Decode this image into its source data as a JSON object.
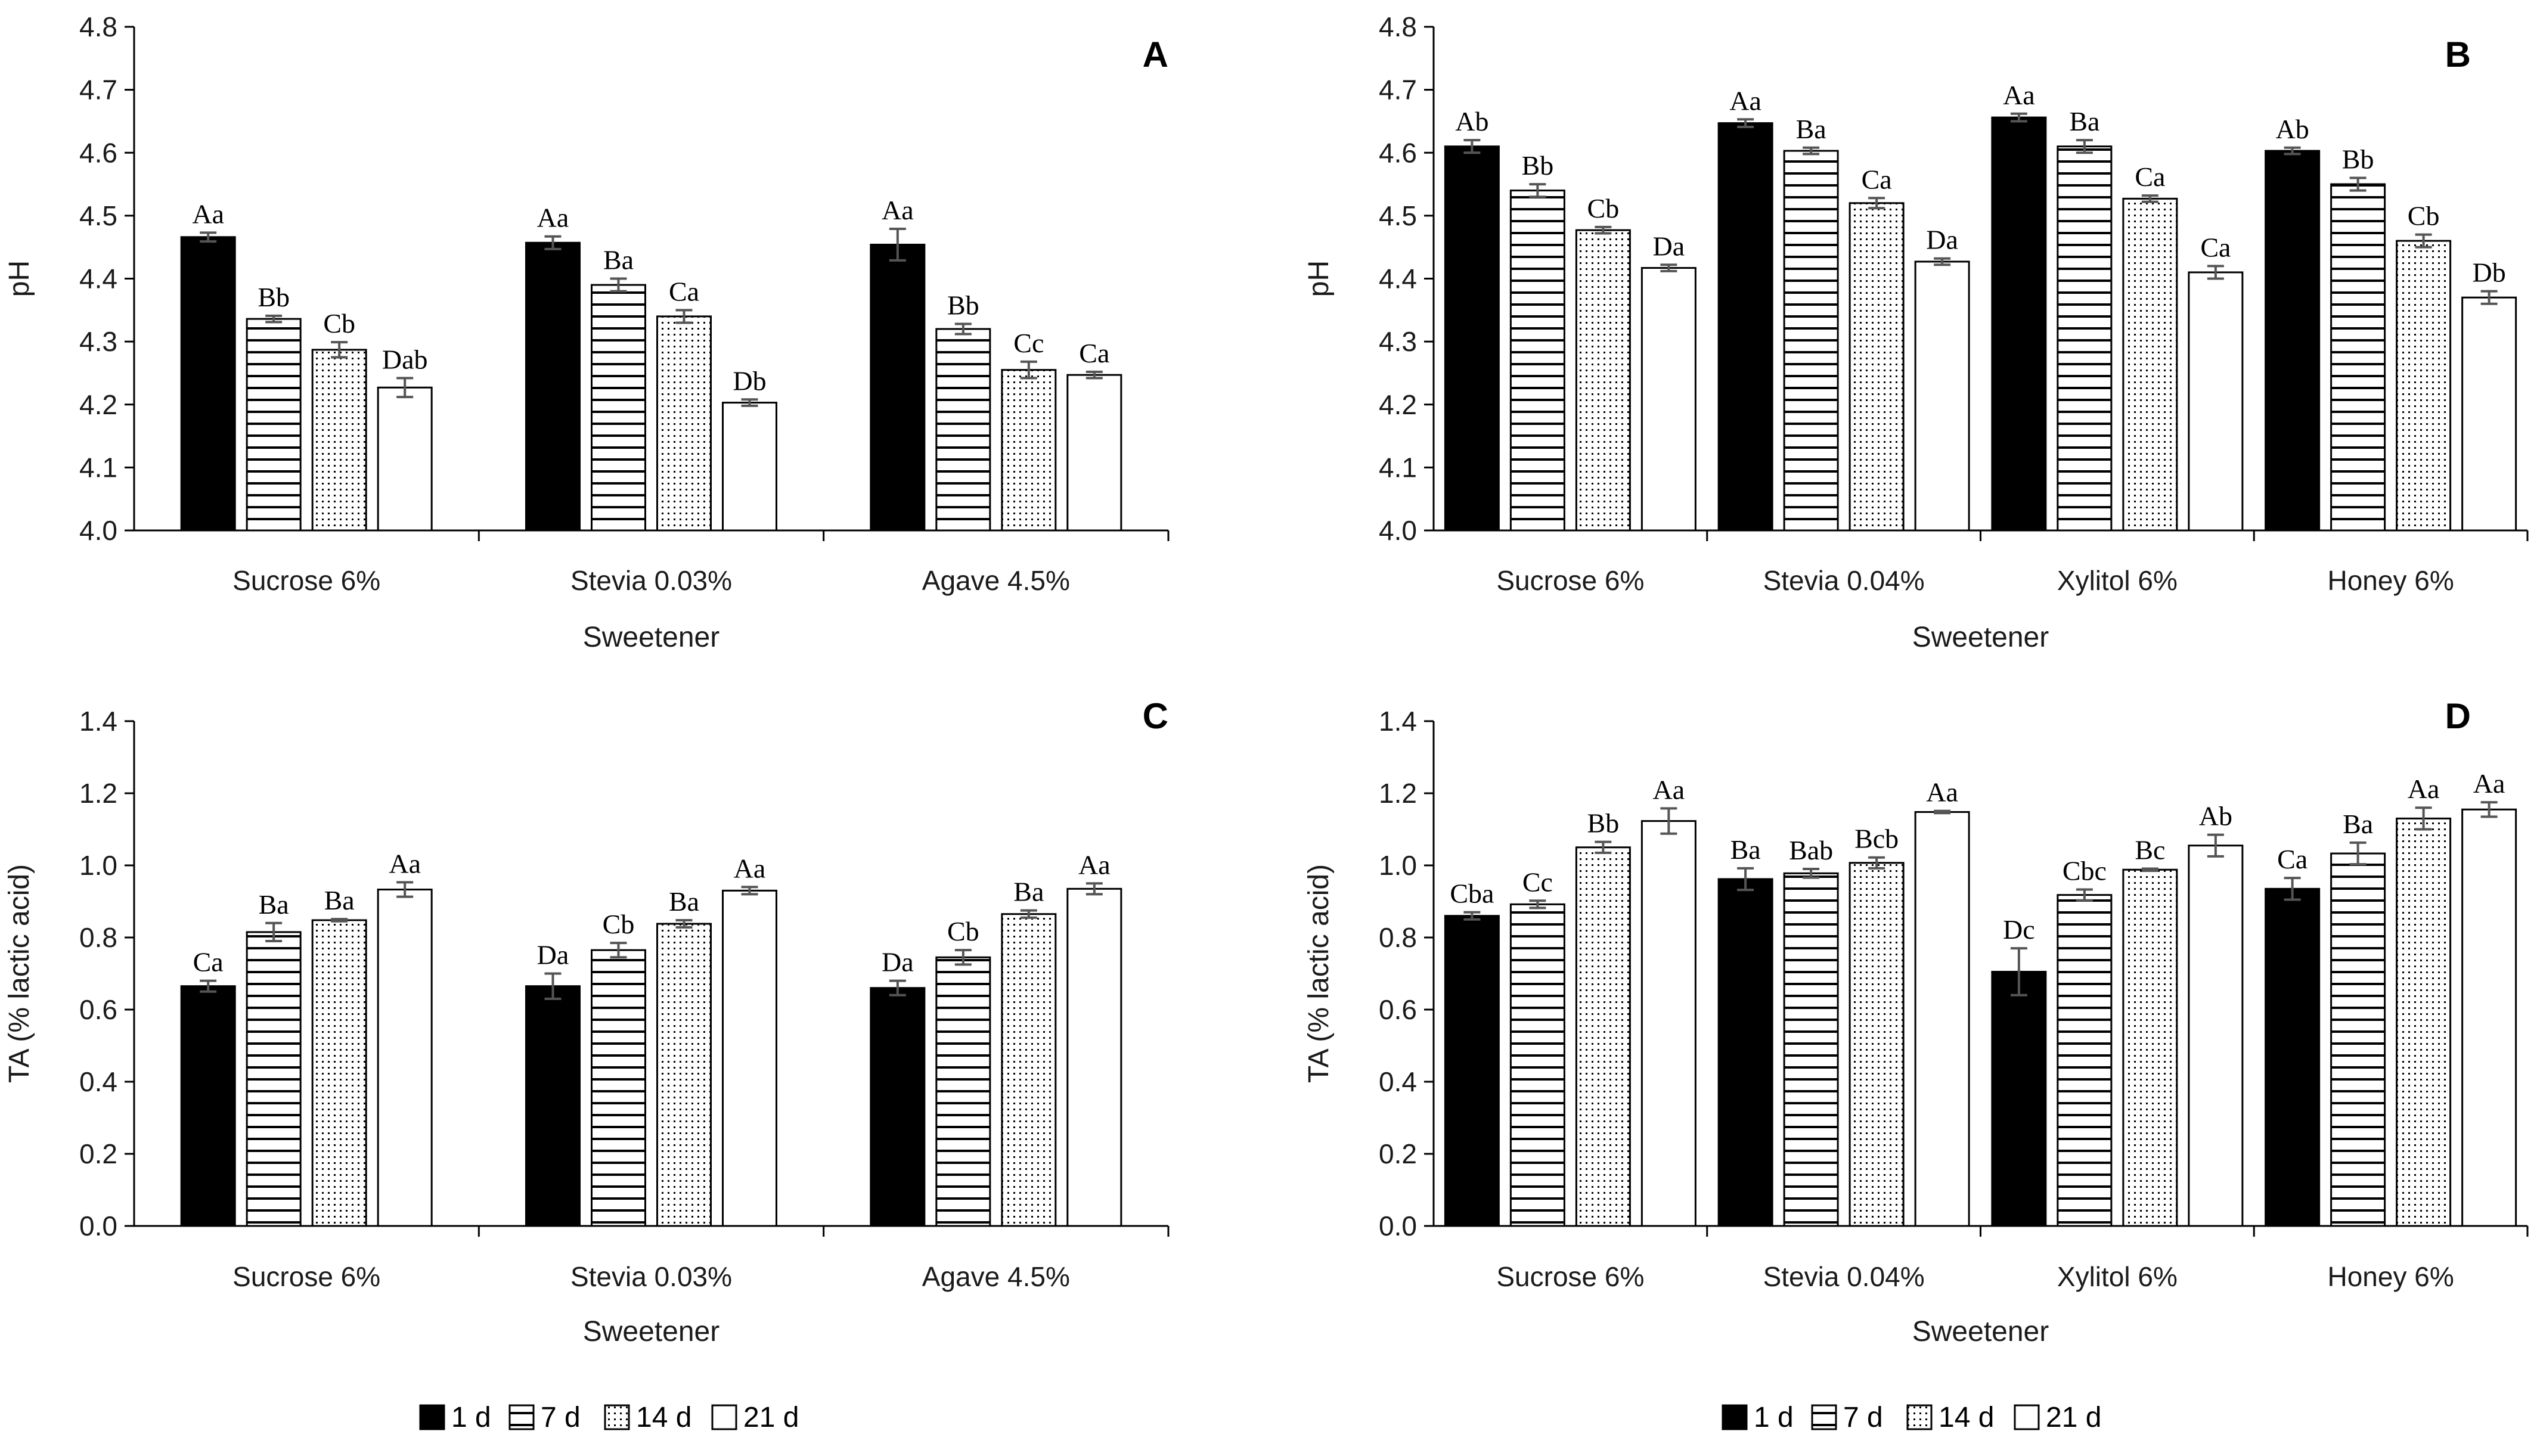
{
  "legend": {
    "series": [
      "1 d",
      "7 d",
      "14 d",
      "21 d"
    ],
    "patterns": [
      "solid",
      "hlines",
      "dots",
      "white"
    ]
  },
  "colors": {
    "bar": "#000000",
    "error": "#555555",
    "axis": "#000000"
  },
  "chart_data": [
    {
      "id": "A",
      "panel_label": "A",
      "type": "bar",
      "title": "",
      "xlabel": "Sweetener",
      "ylabel": "pH",
      "ylim": [
        4.0,
        4.8
      ],
      "yticks": [
        "4.0",
        "4.1",
        "4.2",
        "4.3",
        "4.4",
        "4.5",
        "4.6",
        "4.7",
        "4.8"
      ],
      "categories": [
        "Sucrose 6%",
        "Stevia 0.03%",
        "Agave 4.5%"
      ],
      "series": [
        {
          "name": "1 d",
          "values": [
            4.466,
            4.457,
            4.454
          ],
          "errors": [
            0.007,
            0.01,
            0.025
          ],
          "labels": [
            "Aa",
            "Aa",
            "Aa"
          ]
        },
        {
          "name": "7 d",
          "values": [
            4.336,
            4.39,
            4.32
          ],
          "errors": [
            0.005,
            0.01,
            0.008
          ],
          "labels": [
            "Bb",
            "Ba",
            "Bb"
          ]
        },
        {
          "name": "14 d",
          "values": [
            4.287,
            4.34,
            4.255
          ],
          "errors": [
            0.012,
            0.01,
            0.013
          ],
          "labels": [
            "Cb",
            "Ca",
            "Cc"
          ]
        },
        {
          "name": "21 d",
          "values": [
            4.227,
            4.203,
            4.247
          ],
          "errors": [
            0.015,
            0.005,
            0.005
          ],
          "labels": [
            "Dab",
            "Db",
            "Ca"
          ]
        }
      ]
    },
    {
      "id": "B",
      "panel_label": "B",
      "type": "bar",
      "title": "",
      "xlabel": "Sweetener",
      "ylabel": "pH",
      "ylim": [
        4.0,
        4.8
      ],
      "yticks": [
        "4.0",
        "4.1",
        "4.2",
        "4.3",
        "4.4",
        "4.5",
        "4.6",
        "4.7",
        "4.8"
      ],
      "categories": [
        "Sucrose 6%",
        "Stevia 0.04%",
        "Xylitol 6%",
        "Honey 6%"
      ],
      "series": [
        {
          "name": "1 d",
          "values": [
            4.61,
            4.647,
            4.656,
            4.603
          ],
          "errors": [
            0.01,
            0.006,
            0.006,
            0.005
          ],
          "labels": [
            "Ab",
            "Aa",
            "Aa",
            "Ab"
          ]
        },
        {
          "name": "7 d",
          "values": [
            4.54,
            4.603,
            4.61,
            4.55
          ],
          "errors": [
            0.01,
            0.005,
            0.01,
            0.01
          ],
          "labels": [
            "Bb",
            "Ba",
            "Ba",
            "Bb"
          ]
        },
        {
          "name": "14 d",
          "values": [
            4.477,
            4.52,
            4.527,
            4.46
          ],
          "errors": [
            0.005,
            0.008,
            0.005,
            0.01
          ],
          "labels": [
            "Cb",
            "Ca",
            "Ca",
            "Cb"
          ]
        },
        {
          "name": "21 d",
          "values": [
            4.417,
            4.427,
            4.41,
            4.37
          ],
          "errors": [
            0.005,
            0.005,
            0.01,
            0.01
          ],
          "labels": [
            "Da",
            "Da",
            "Ca",
            "Db"
          ]
        }
      ]
    },
    {
      "id": "C",
      "panel_label": "C",
      "type": "bar",
      "title": "",
      "xlabel": "Sweetener",
      "ylabel": "TA (% lactic acid)",
      "ylim": [
        0.0,
        1.4
      ],
      "yticks": [
        "0.0",
        "0.2",
        "0.4",
        "0.6",
        "0.8",
        "1.0",
        "1.2",
        "1.4"
      ],
      "categories": [
        "Sucrose 6%",
        "Stevia 0.03%",
        "Agave 4.5%"
      ],
      "series": [
        {
          "name": "1 d",
          "values": [
            0.665,
            0.665,
            0.66
          ],
          "errors": [
            0.015,
            0.035,
            0.02
          ],
          "labels": [
            "Ca",
            "Da",
            "Da"
          ]
        },
        {
          "name": "7 d",
          "values": [
            0.815,
            0.765,
            0.745
          ],
          "errors": [
            0.025,
            0.02,
            0.02
          ],
          "labels": [
            "Ba",
            "Cb",
            "Cb"
          ]
        },
        {
          "name": "14 d",
          "values": [
            0.848,
            0.838,
            0.865
          ],
          "errors": [
            0.003,
            0.01,
            0.01
          ],
          "labels": [
            "Ba",
            "Ba",
            "Ba"
          ]
        },
        {
          "name": "21 d",
          "values": [
            0.933,
            0.93,
            0.935
          ],
          "errors": [
            0.02,
            0.01,
            0.015
          ],
          "labels": [
            "Aa",
            "Aa",
            "Aa"
          ]
        }
      ]
    },
    {
      "id": "D",
      "panel_label": "D",
      "type": "bar",
      "title": "",
      "xlabel": "Sweetener",
      "ylabel": "TA (% lactic acid)",
      "ylim": [
        0.0,
        1.4
      ],
      "yticks": [
        "0.0",
        "0.2",
        "0.4",
        "0.6",
        "0.8",
        "1.0",
        "1.2",
        "1.4"
      ],
      "categories": [
        "Sucrose 6%",
        "Stevia 0.04%",
        "Xylitol 6%",
        "Honey 6%"
      ],
      "series": [
        {
          "name": "1 d",
          "values": [
            0.86,
            0.962,
            0.705,
            0.935
          ],
          "errors": [
            0.01,
            0.03,
            0.065,
            0.03
          ],
          "labels": [
            "Cba",
            "Ba",
            "Dc",
            "Ca"
          ]
        },
        {
          "name": "7 d",
          "values": [
            0.892,
            0.978,
            0.918,
            1.033
          ],
          "errors": [
            0.01,
            0.012,
            0.015,
            0.03
          ],
          "labels": [
            "Cc",
            "Bab",
            "Cbc",
            "Ba"
          ]
        },
        {
          "name": "14 d",
          "values": [
            1.05,
            1.007,
            0.988,
            1.13
          ],
          "errors": [
            0.015,
            0.015,
            0.003,
            0.03
          ],
          "labels": [
            "Bb",
            "Bcb",
            "Bc",
            "Aa"
          ]
        },
        {
          "name": "21 d",
          "values": [
            1.123,
            1.148,
            1.055,
            1.155
          ],
          "errors": [
            0.035,
            0.003,
            0.03,
            0.02
          ],
          "labels": [
            "Aa",
            "Aa",
            "Ab",
            "Aa"
          ]
        }
      ]
    }
  ]
}
